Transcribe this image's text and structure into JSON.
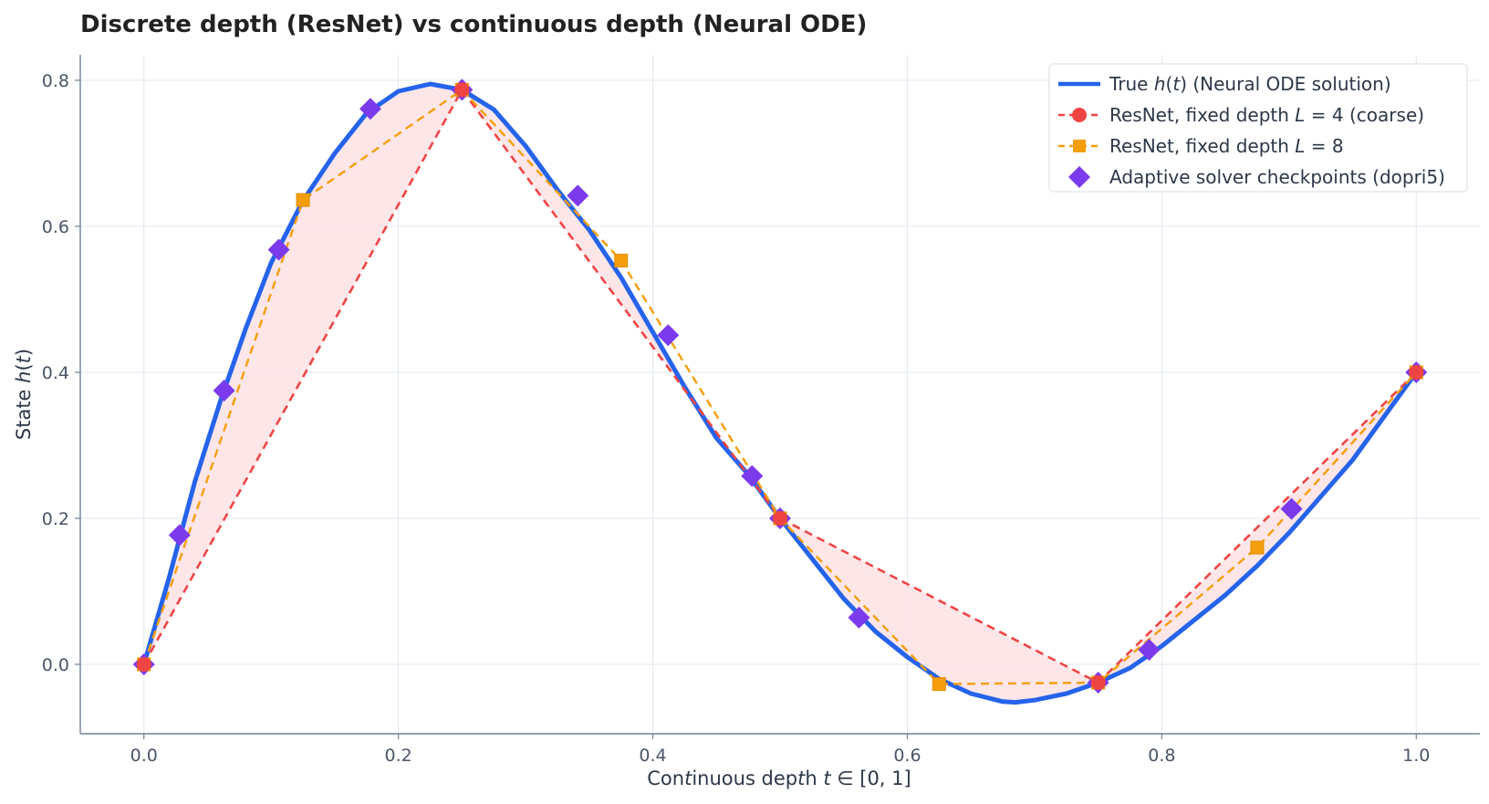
{
  "chart_data": {
    "type": "line",
    "title": "Discrete depth (ResNet) vs continuous depth (Neural ODE)",
    "xlabel": "Continuous depth t ∈ [0, 1]",
    "ylabel": "State h(t)",
    "xlim": [
      -0.05,
      1.05
    ],
    "ylim": [
      -0.095,
      0.835
    ],
    "xticks": [
      "0.0",
      "0.2",
      "0.4",
      "0.6",
      "0.8",
      "1.0"
    ],
    "yticks": [
      "0.0",
      "0.2",
      "0.4",
      "0.6",
      "0.8"
    ],
    "grid": true,
    "legend_position": "top-right",
    "colors": {
      "true": "#2563eb",
      "coarse": "#ef4444",
      "fine": "#f59e0b",
      "adaptive": "#7c3aed",
      "fill": "#fde2e4"
    },
    "series": [
      {
        "name": "True h(t) (Neural ODE solution)",
        "style": "solid-line",
        "x": [
          0.0,
          0.02,
          0.04,
          0.06,
          0.08,
          0.1,
          0.125,
          0.15,
          0.175,
          0.2,
          0.225,
          0.25,
          0.275,
          0.3,
          0.325,
          0.35,
          0.375,
          0.4,
          0.425,
          0.45,
          0.475,
          0.5,
          0.525,
          0.55,
          0.575,
          0.6,
          0.625,
          0.65,
          0.675,
          0.685,
          0.7,
          0.725,
          0.75,
          0.775,
          0.8,
          0.825,
          0.85,
          0.875,
          0.9,
          0.925,
          0.95,
          0.975,
          1.0
        ],
        "values": [
          0.0,
          0.12,
          0.25,
          0.36,
          0.46,
          0.55,
          0.635,
          0.7,
          0.755,
          0.785,
          0.795,
          0.787,
          0.76,
          0.71,
          0.65,
          0.595,
          0.53,
          0.455,
          0.38,
          0.31,
          0.26,
          0.2,
          0.145,
          0.09,
          0.045,
          0.01,
          -0.02,
          -0.04,
          -0.051,
          -0.052,
          -0.049,
          -0.04,
          -0.025,
          -0.005,
          0.025,
          0.06,
          0.095,
          0.135,
          0.18,
          0.23,
          0.28,
          0.34,
          0.4
        ]
      },
      {
        "name": "ResNet, fixed depth L = 4 (coarse)",
        "style": "dashed-circle",
        "x": [
          0.0,
          0.25,
          0.5,
          0.75,
          1.0
        ],
        "values": [
          0.0,
          0.787,
          0.2,
          -0.025,
          0.4
        ]
      },
      {
        "name": "ResNet, fixed depth L = 8",
        "style": "dashed-square",
        "x": [
          0.0,
          0.125,
          0.25,
          0.375,
          0.5,
          0.625,
          0.75,
          0.875,
          1.0
        ],
        "values": [
          0.0,
          0.636,
          0.787,
          0.553,
          0.2,
          -0.027,
          -0.025,
          0.16,
          0.4
        ]
      },
      {
        "name": "Adaptive solver checkpoints (dopri5)",
        "style": "diamond-markers",
        "x": [
          0.0,
          0.028,
          0.063,
          0.106,
          0.178,
          0.25,
          0.341,
          0.412,
          0.478,
          0.5,
          0.562,
          0.75,
          0.79,
          0.902,
          1.0
        ],
        "values": [
          0.0,
          0.177,
          0.375,
          0.568,
          0.761,
          0.787,
          0.642,
          0.451,
          0.258,
          0.2,
          0.064,
          -0.025,
          0.02,
          0.213,
          0.4
        ]
      }
    ]
  }
}
